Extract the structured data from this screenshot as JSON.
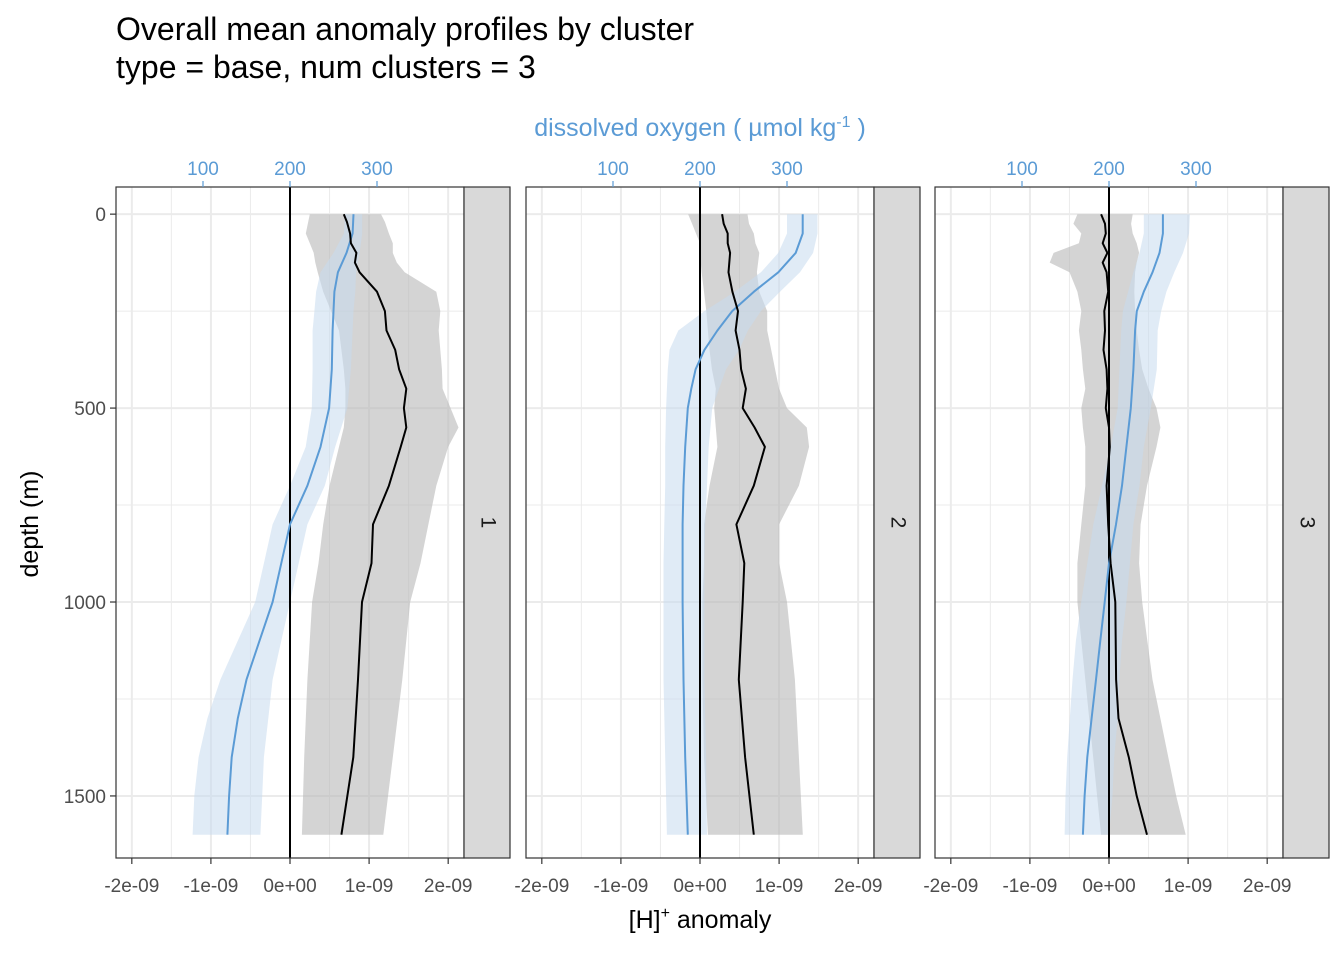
{
  "title": "Overall mean anomaly profiles by cluster",
  "subtitle": "type = base, num clusters = 3",
  "colors": {
    "oxygen": "#5b9bd5",
    "oxygen_ribbon": "#c6dbef",
    "h_line": "#000000",
    "h_ribbon": "#b8b8b8",
    "strip_fill": "#d9d9d9",
    "grid": "#ebebeb"
  },
  "chart_data": {
    "type": "line",
    "orientation": "depth-profile",
    "ylabel": "depth (m)",
    "xlabel_bottom": "[H]",
    "xlabel_bottom_sup": "+",
    "xlabel_bottom_suffix": " anomaly",
    "xlabel_top_prefix": "dissolved oxygen ( µmol kg",
    "xlabel_top_sup": "-1",
    "xlabel_top_suffix": " )",
    "xlim_bottom": [
      -2.2e-09,
      2.2e-09
    ],
    "xticks_bottom": [
      -2e-09,
      -1e-09,
      0,
      1e-09,
      2e-09
    ],
    "xticklabels_bottom": [
      "-2e-09",
      "-1e-09",
      "0e+00",
      "1e-09",
      "2e-09"
    ],
    "xlim_top": [
      0,
      400
    ],
    "xticks_top": [
      100,
      200,
      300
    ],
    "xticklabels_top": [
      "100",
      "200",
      "300"
    ],
    "ylim": [
      -70,
      1660
    ],
    "yticks": [
      0,
      500,
      1000,
      1500
    ],
    "yticklabels": [
      "0",
      "500",
      "1000",
      "1500"
    ],
    "panels": [
      {
        "label": "1",
        "h_anomaly": {
          "depth": [
            0,
            20,
            50,
            75,
            100,
            125,
            150,
            200,
            250,
            300,
            350,
            400,
            450,
            500,
            550,
            600,
            700,
            800,
            900,
            1000,
            1200,
            1400,
            1600
          ],
          "mean": [
            6.8e-10,
            7.2e-10,
            7.6e-10,
            7.7e-10,
            8.4e-10,
            8.2e-10,
            8.8e-10,
            1.1e-09,
            1.2e-09,
            1.22e-09,
            1.33e-09,
            1.38e-09,
            1.47e-09,
            1.44e-09,
            1.47e-09,
            1.4e-09,
            1.25e-09,
            1.05e-09,
            1.03e-09,
            9.1e-10,
            8.6e-10,
            8e-10,
            6.5e-10
          ],
          "lower": [
            2.5e-10,
            2.3e-10,
            2e-10,
            2.5e-10,
            3e-10,
            3.2e-10,
            3.5e-10,
            4.2e-10,
            5.2e-10,
            6.2e-10,
            6.5e-10,
            6.8e-10,
            7e-10,
            7e-10,
            6.8e-10,
            6.2e-10,
            5e-10,
            4.2e-10,
            3.6e-10,
            2.8e-10,
            2.2e-10,
            1.8e-10,
            1.5e-10
          ],
          "upper": [
            1.15e-09,
            1.2e-09,
            1.25e-09,
            1.3e-09,
            1.3e-09,
            1.35e-09,
            1.45e-09,
            1.85e-09,
            1.9e-09,
            1.88e-09,
            1.9e-09,
            1.92e-09,
            1.93e-09,
            2.03e-09,
            2.13e-09,
            2e-09,
            1.85e-09,
            1.75e-09,
            1.65e-09,
            1.52e-09,
            1.42e-09,
            1.3e-09,
            1.18e-09
          ]
        },
        "oxygen": {
          "depth": [
            0,
            50,
            100,
            150,
            200,
            250,
            300,
            400,
            500,
            600,
            700,
            800,
            900,
            1000,
            1100,
            1200,
            1300,
            1400,
            1500,
            1600
          ],
          "mean": [
            273,
            272,
            265,
            255,
            251,
            250,
            249,
            248,
            245,
            235,
            220,
            200,
            190,
            180,
            165,
            150,
            140,
            133,
            130,
            128
          ],
          "lower": [
            263,
            262,
            250,
            235,
            230,
            228,
            226,
            226,
            225,
            218,
            200,
            180,
            170,
            160,
            140,
            120,
            105,
            95,
            90,
            88
          ],
          "upper": [
            283,
            283,
            280,
            276,
            275,
            273,
            272,
            270,
            266,
            252,
            240,
            220,
            210,
            200,
            190,
            180,
            175,
            170,
            168,
            166
          ]
        }
      },
      {
        "label": "2",
        "h_anomaly": {
          "depth": [
            0,
            25,
            50,
            75,
            100,
            150,
            200,
            250,
            300,
            350,
            400,
            450,
            500,
            550,
            600,
            700,
            800,
            900,
            1000,
            1200,
            1400,
            1600
          ],
          "mean": [
            2.8e-10,
            3e-10,
            3.5e-10,
            3.5e-10,
            3.8e-10,
            3.6e-10,
            4.1e-10,
            4.8e-10,
            4.5e-10,
            5e-10,
            5.2e-10,
            5.8e-10,
            5.4e-10,
            6.9e-10,
            8.2e-10,
            6.8e-10,
            4.6e-10,
            5.6e-10,
            5.4e-10,
            4.9e-10,
            5.7e-10,
            6.8e-10
          ],
          "lower": [
            -1.5e-10,
            -1e-10,
            -5e-11,
            0.0,
            0.0,
            2e-11,
            5e-11,
            8e-11,
            1e-10,
            1.2e-10,
            1.5e-10,
            2e-10,
            1.8e-10,
            2e-10,
            2.2e-10,
            1.2e-10,
            5e-11,
            5e-11,
            3e-11,
            3e-11,
            5e-11,
            1e-10
          ],
          "upper": [
            6e-10,
            6.2e-10,
            6.8e-10,
            7e-10,
            7.5e-10,
            7.2e-10,
            7.5e-10,
            8.5e-10,
            8.5e-10,
            9e-10,
            9.5e-10,
            1e-09,
            1.1e-09,
            1.35e-09,
            1.38e-09,
            1.25e-09,
            1e-09,
            1e-09,
            1.1e-09,
            1.2e-09,
            1.25e-09,
            1.3e-09
          ]
        },
        "oxygen": {
          "depth": [
            0,
            50,
            100,
            150,
            200,
            250,
            300,
            350,
            400,
            450,
            500,
            600,
            700,
            800,
            900,
            1000,
            1200,
            1400,
            1600
          ],
          "mean": [
            318,
            318,
            310,
            290,
            262,
            237,
            220,
            205,
            195,
            190,
            186,
            183,
            181,
            180,
            180,
            180,
            181,
            183,
            186
          ],
          "lower": [
            300,
            300,
            290,
            270,
            240,
            205,
            175,
            165,
            163,
            162,
            161,
            160,
            160,
            159,
            158,
            158,
            158,
            160,
            162
          ],
          "upper": [
            335,
            335,
            330,
            315,
            292,
            270,
            255,
            245,
            230,
            222,
            214,
            210,
            208,
            206,
            205,
            205,
            205,
            207,
            208
          ]
        }
      },
      {
        "label": "3",
        "h_anomaly": {
          "depth": [
            0,
            25,
            50,
            75,
            100,
            125,
            150,
            200,
            250,
            300,
            350,
            400,
            450,
            500,
            550,
            600,
            700,
            800,
            900,
            1000,
            1200,
            1300,
            1400,
            1500,
            1600
          ],
          "mean": [
            -1e-10,
            -5e-11,
            -4e-11,
            -8e-11,
            -2e-11,
            -8e-11,
            -3e-11,
            -1e-11,
            -6e-11,
            -5e-11,
            -7e-11,
            -3e-11,
            -2e-11,
            -4e-11,
            0.0,
            1e-11,
            -3e-11,
            -1e-11,
            2e-11,
            8e-11,
            9e-11,
            1.2e-10,
            2.5e-10,
            3.5e-10,
            4.8e-10
          ],
          "lower": [
            -4e-10,
            -4.5e-10,
            -3.5e-10,
            -3.8e-10,
            -7e-10,
            -7.5e-10,
            -5e-10,
            -4e-10,
            -3.5e-10,
            -3.8e-10,
            -3.5e-10,
            -3.3e-10,
            -3e-10,
            -3.5e-10,
            -3.3e-10,
            -3e-10,
            -3e-10,
            -3.5e-10,
            -4e-10,
            -4e-10,
            -3e-10,
            -2.5e-10,
            -2e-10,
            -1.5e-10,
            -1e-10
          ],
          "upper": [
            3e-10,
            2.8e-10,
            3e-10,
            3.5e-10,
            3.8e-10,
            3.5e-10,
            3.3e-10,
            3.2e-10,
            3.3e-10,
            3.5e-10,
            3.8e-10,
            4.2e-10,
            5e-10,
            6e-10,
            6.5e-10,
            6e-10,
            4.8e-10,
            4e-10,
            3.8e-10,
            4.2e-10,
            5.5e-10,
            6.5e-10,
            7.5e-10,
            8.5e-10,
            9.7e-10
          ]
        },
        "oxygen": {
          "depth": [
            0,
            50,
            100,
            150,
            200,
            250,
            300,
            400,
            500,
            600,
            700,
            800,
            900,
            1000,
            1100,
            1200,
            1300,
            1400,
            1500,
            1600
          ],
          "mean": [
            262,
            262,
            258,
            250,
            240,
            232,
            230,
            228,
            225,
            220,
            215,
            208,
            200,
            195,
            190,
            185,
            180,
            175,
            172,
            170
          ],
          "lower": [
            240,
            240,
            235,
            228,
            222,
            216,
            214,
            212,
            210,
            202,
            192,
            182,
            175,
            168,
            162,
            158,
            155,
            152,
            150,
            149
          ],
          "upper": [
            293,
            292,
            285,
            275,
            266,
            260,
            256,
            255,
            248,
            240,
            235,
            228,
            224,
            220,
            215,
            212,
            210,
            206,
            204,
            200
          ]
        }
      }
    ]
  }
}
